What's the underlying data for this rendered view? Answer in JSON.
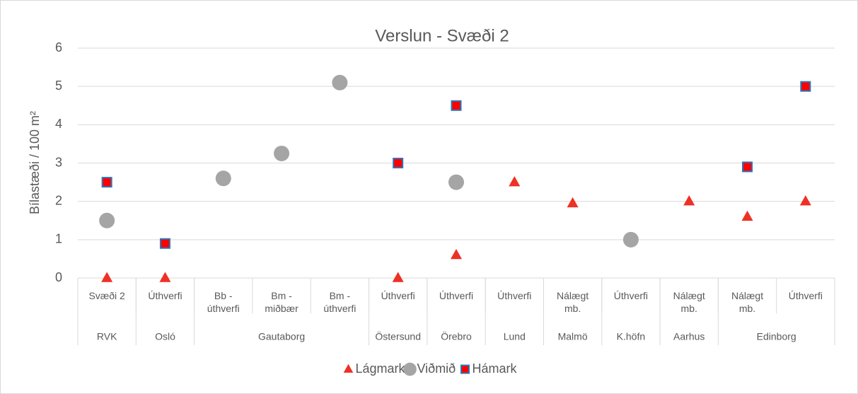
{
  "chart_data": {
    "type": "scatter",
    "title": "Verslun - Svæði 2",
    "y_label": "Bílastæði / 100 m²",
    "categories": [
      "Svæði 2",
      "Úthverfi",
      "Bb - úthverfi",
      "Bm - miðbær",
      "Bm - úthverfi",
      "Úthverfi",
      "Úthverfi",
      "Úthverfi",
      "Nálægt mb.",
      "Úthverfi",
      "Nálægt mb.",
      "Nálægt mb.",
      "Úthverfi"
    ],
    "groups": [
      {
        "name": "RVK",
        "size": 1
      },
      {
        "name": "Osló",
        "size": 1
      },
      {
        "name": "Gautaborg",
        "size": 3
      },
      {
        "name": "Östersund",
        "size": 1
      },
      {
        "name": "Örebro",
        "size": 1
      },
      {
        "name": "Lund",
        "size": 1
      },
      {
        "name": "Malmö",
        "size": 1
      },
      {
        "name": "K.höfn",
        "size": 1
      },
      {
        "name": "Aarhus",
        "size": 1
      },
      {
        "name": "Edinborg",
        "size": 2
      }
    ],
    "series": [
      {
        "name": "Lágmark",
        "color": "#ee3124",
        "marker": "triangle",
        "values": [
          0,
          0,
          null,
          null,
          null,
          0,
          0.6,
          2.5,
          1.95,
          null,
          2,
          1.6,
          2
        ]
      },
      {
        "name": "Viðmið",
        "color": "#a5a5a5",
        "marker": "circle",
        "values": [
          1.5,
          null,
          2.6,
          3.25,
          5.1,
          null,
          2.5,
          null,
          null,
          1,
          null,
          null,
          null
        ]
      },
      {
        "name": "Hámark",
        "color": "#ff0000",
        "edge_color": "#2e75b6",
        "marker": "square",
        "values": [
          2.5,
          0.9,
          null,
          null,
          null,
          3,
          4.5,
          null,
          null,
          null,
          null,
          2.9,
          5
        ]
      }
    ],
    "ylim": [
      0,
      6
    ],
    "yticks": [
      0,
      1,
      2,
      3,
      4,
      5,
      6
    ],
    "grid": true
  }
}
